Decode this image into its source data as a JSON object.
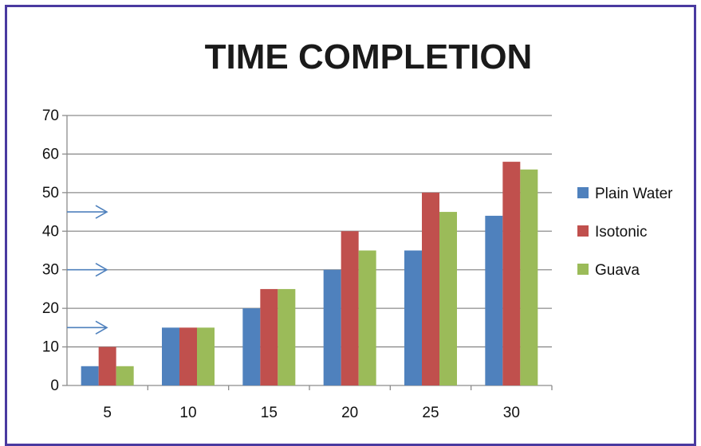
{
  "chart_data": {
    "type": "bar",
    "title": "TIME COMPLETION",
    "xlabel": "",
    "ylabel": "",
    "categories": [
      "5",
      "10",
      "15",
      "20",
      "25",
      "30"
    ],
    "series": [
      {
        "name": "Plain Water",
        "color": "#4f81bd",
        "values": [
          5,
          15,
          20,
          30,
          35,
          44
        ]
      },
      {
        "name": "Isotonic",
        "color": "#c0504d",
        "values": [
          10,
          15,
          25,
          40,
          50,
          58
        ]
      },
      {
        "name": "Guava",
        "color": "#9bbb59",
        "values": [
          5,
          15,
          25,
          35,
          45,
          56
        ]
      }
    ],
    "ylim": [
      0,
      70
    ],
    "yticks": [
      0,
      10,
      20,
      30,
      40,
      50,
      60,
      70
    ],
    "grid": true,
    "legend": "right",
    "annotations": [
      {
        "type": "arrow",
        "y": 45
      },
      {
        "type": "arrow",
        "y": 30
      },
      {
        "type": "arrow",
        "y": 15
      }
    ],
    "arrow_color": "#4f81bd",
    "gridline_color": "#8c8c8c",
    "frame_color": "#4a3aa0"
  }
}
